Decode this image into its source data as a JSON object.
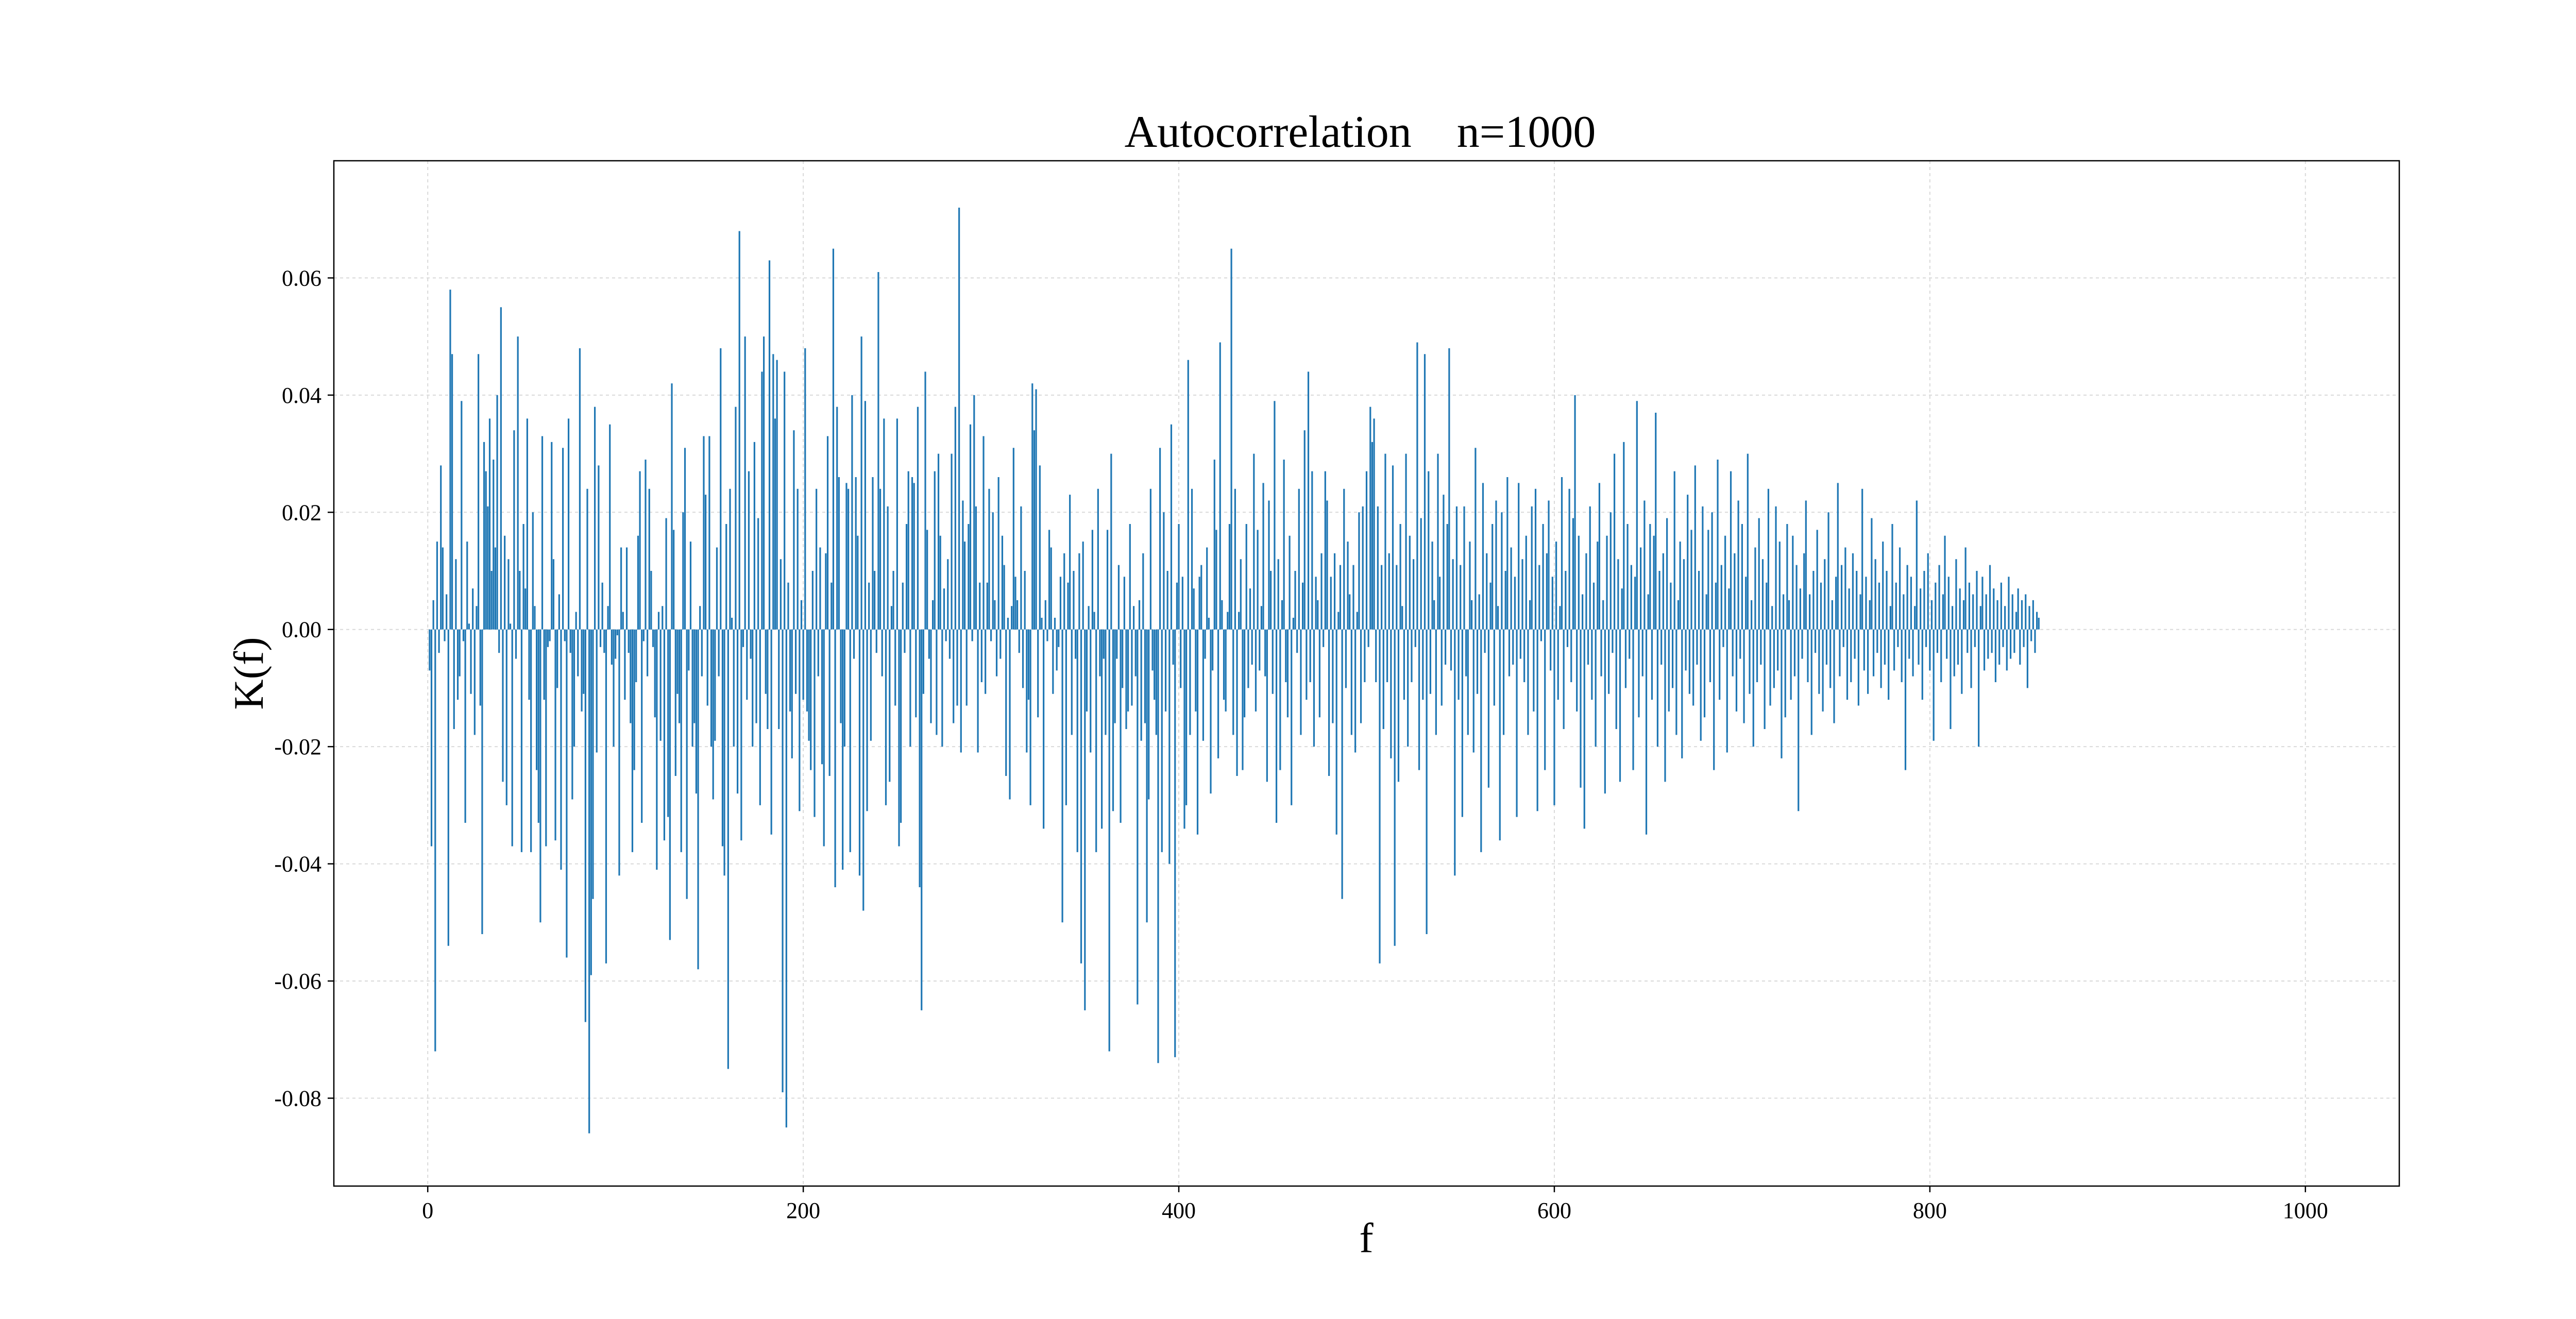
{
  "colors": {
    "bar": "#1f77b4",
    "background": "#ffffff",
    "grid": "#d9d9d9",
    "axis": "#000000"
  },
  "chart_data": {
    "type": "bar",
    "title": "Autocorrelation    n=1000",
    "xlabel": "f",
    "ylabel": "K(f)",
    "xlim": [
      -50,
      1050
    ],
    "ylim": [
      -0.095,
      0.08
    ],
    "grid": true,
    "x_ticks": [
      0,
      200,
      400,
      600,
      800,
      1000
    ],
    "x_tick_labels": [
      "0",
      "200",
      "400",
      "600",
      "800",
      "1000"
    ],
    "y_ticks": [
      -0.08,
      -0.06,
      -0.04,
      -0.02,
      0.0,
      0.02,
      0.04,
      0.06
    ],
    "y_tick_labels": [
      "-0.08",
      "-0.06",
      "-0.04",
      "-0.02",
      "0.00",
      "0.02",
      "0.04",
      "0.06"
    ],
    "series": [
      {
        "x_start": 1,
        "x_step": 1,
        "values": [
          -0.007,
          -0.037,
          0.005,
          -0.072,
          0.015,
          -0.004,
          0.028,
          0.014,
          -0.002,
          0.006,
          -0.054,
          0.058,
          0.047,
          -0.017,
          0.012,
          -0.012,
          -0.008,
          0.039,
          -0.002,
          -0.033,
          0.015,
          0.001,
          -0.011,
          0.007,
          -0.018,
          0.004,
          0.047,
          -0.013,
          -0.052,
          0.032,
          0.027,
          0.021,
          0.036,
          0.01,
          0.029,
          0.014,
          0.04,
          -0.004,
          0.055,
          -0.026,
          0.016,
          -0.03,
          0.012,
          0.001,
          -0.037,
          0.034,
          -0.005,
          0.05,
          0.01,
          -0.038,
          0.018,
          0.007,
          0.036,
          -0.012,
          -0.038,
          0.02,
          0.004,
          -0.024,
          -0.033,
          -0.05,
          0.033,
          -0.012,
          -0.037,
          -0.003,
          -0.002,
          0.032,
          0.012,
          -0.036,
          -0.01,
          0.006,
          -0.041,
          0.031,
          -0.002,
          -0.056,
          0.036,
          -0.004,
          -0.029,
          -0.02,
          0.003,
          -0.008,
          0.048,
          -0.014,
          -0.011,
          -0.067,
          0.024,
          -0.086,
          -0.059,
          -0.046,
          0.038,
          -0.021,
          0.028,
          -0.003,
          0.008,
          -0.004,
          -0.057,
          0.004,
          0.035,
          -0.006,
          -0.02,
          -0.005,
          -0.001,
          -0.042,
          0.014,
          0.003,
          -0.012,
          0.014,
          -0.004,
          -0.016,
          -0.038,
          -0.024,
          -0.009,
          0.016,
          0.027,
          -0.033,
          -0.002,
          0.029,
          -0.008,
          0.024,
          0.01,
          -0.003,
          -0.015,
          -0.041,
          0.003,
          -0.019,
          0.004,
          -0.036,
          0.019,
          -0.032,
          -0.053,
          0.042,
          0.017,
          -0.025,
          -0.011,
          -0.016,
          -0.038,
          0.02,
          0.031,
          -0.046,
          -0.007,
          0.015,
          -0.02,
          -0.016,
          -0.028,
          -0.058,
          0.004,
          -0.008,
          0.033,
          0.023,
          -0.013,
          0.033,
          -0.02,
          -0.029,
          -0.019,
          0.014,
          -0.008,
          0.048,
          -0.037,
          -0.042,
          0.018,
          -0.075,
          0.024,
          0.002,
          -0.02,
          0.038,
          -0.028,
          0.068,
          -0.036,
          -0.003,
          0.05,
          -0.012,
          0.027,
          -0.005,
          -0.02,
          0.032,
          -0.016,
          0.019,
          -0.03,
          0.044,
          0.05,
          -0.011,
          -0.017,
          0.063,
          -0.035,
          0.047,
          0.036,
          0.046,
          -0.017,
          0.012,
          -0.079,
          0.044,
          -0.085,
          0.008,
          -0.014,
          -0.022,
          0.034,
          -0.011,
          0.024,
          -0.031,
          0.005,
          -0.012,
          0.048,
          -0.014,
          -0.019,
          -0.024,
          0.01,
          -0.032,
          0.024,
          -0.008,
          0.014,
          -0.023,
          -0.037,
          0.013,
          0.033,
          -0.025,
          0.008,
          0.065,
          -0.044,
          0.038,
          0.026,
          -0.016,
          -0.041,
          -0.02,
          0.025,
          0.024,
          -0.038,
          0.04,
          -0.005,
          0.026,
          0.016,
          -0.042,
          0.05,
          -0.048,
          0.039,
          -0.031,
          0.008,
          -0.019,
          0.026,
          0.01,
          -0.004,
          0.061,
          0.024,
          -0.008,
          0.036,
          -0.03,
          0.021,
          -0.026,
          0.004,
          0.01,
          -0.013,
          0.036,
          -0.037,
          -0.033,
          0.008,
          -0.004,
          0.018,
          0.027,
          -0.02,
          0.026,
          0.025,
          -0.015,
          0.038,
          -0.044,
          -0.065,
          -0.011,
          0.044,
          0.017,
          -0.005,
          -0.016,
          0.005,
          0.027,
          -0.018,
          0.03,
          0.016,
          -0.02,
          0.007,
          -0.002,
          0.012,
          -0.005,
          0.03,
          -0.016,
          0.038,
          -0.013,
          0.072,
          -0.021,
          0.022,
          0.015,
          -0.013,
          0.018,
          0.035,
          -0.002,
          0.04,
          0.021,
          -0.021,
          0.008,
          -0.009,
          0.033,
          -0.011,
          0.008,
          0.024,
          -0.002,
          0.02,
          0.005,
          -0.008,
          0.026,
          -0.005,
          0.016,
          0.011,
          -0.025,
          0.002,
          -0.029,
          0.004,
          0.031,
          0.009,
          0.005,
          -0.004,
          0.021,
          -0.01,
          0.01,
          -0.021,
          -0.012,
          -0.03,
          0.042,
          0.034,
          0.041,
          -0.015,
          0.028,
          0.002,
          -0.034,
          0.005,
          -0.002,
          0.017,
          0.014,
          -0.011,
          0.002,
          -0.007,
          -0.003,
          0.009,
          -0.05,
          0.013,
          -0.03,
          0.008,
          0.023,
          -0.018,
          0.01,
          -0.005,
          -0.038,
          0.013,
          -0.057,
          0.015,
          -0.065,
          -0.014,
          0.004,
          -0.021,
          0.017,
          0.003,
          -0.038,
          0.024,
          -0.008,
          -0.034,
          -0.005,
          -0.018,
          0.017,
          -0.072,
          0.03,
          -0.031,
          -0.016,
          -0.005,
          0.011,
          -0.033,
          -0.01,
          0.009,
          -0.017,
          -0.014,
          0.018,
          -0.013,
          0.004,
          -0.008,
          -0.064,
          0.005,
          -0.019,
          0.013,
          -0.016,
          -0.05,
          -0.029,
          0.024,
          -0.007,
          -0.012,
          -0.018,
          -0.074,
          0.031,
          -0.038,
          0.02,
          -0.014,
          0.01,
          -0.04,
          0.035,
          -0.006,
          -0.073,
          0.008,
          0.018,
          -0.01,
          0.009,
          -0.034,
          -0.03,
          0.046,
          -0.018,
          0.024,
          0.007,
          -0.014,
          -0.035,
          0.009,
          0.011,
          -0.019,
          -0.005,
          0.014,
          0.002,
          -0.028,
          -0.007,
          0.029,
          0.017,
          -0.022,
          0.049,
          0.005,
          -0.012,
          -0.014,
          0.003,
          0.018,
          0.065,
          -0.018,
          0.024,
          -0.025,
          0.003,
          0.012,
          -0.024,
          -0.015,
          0.018,
          -0.01,
          0.007,
          -0.006,
          0.03,
          -0.014,
          0.017,
          -0.007,
          0.004,
          0.025,
          -0.008,
          -0.026,
          0.022,
          0.01,
          -0.011,
          0.039,
          -0.033,
          0.012,
          -0.024,
          0.005,
          0.029,
          -0.009,
          -0.015,
          0.016,
          -0.03,
          0.002,
          0.01,
          -0.004,
          0.024,
          -0.018,
          0.008,
          0.034,
          -0.012,
          0.044,
          -0.009,
          0.027,
          -0.02,
          0.009,
          0.005,
          -0.015,
          0.013,
          -0.003,
          0.027,
          0.022,
          -0.025,
          0.009,
          -0.016,
          0.013,
          -0.035,
          0.003,
          0.011,
          -0.046,
          0.024,
          -0.01,
          0.015,
          0.006,
          -0.018,
          0.011,
          -0.021,
          0.003,
          0.02,
          -0.016,
          0.021,
          -0.009,
          0.027,
          -0.003,
          0.038,
          0.032,
          0.036,
          -0.009,
          0.021,
          -0.057,
          0.011,
          -0.017,
          0.03,
          -0.009,
          0.013,
          -0.022,
          0.028,
          -0.054,
          0.011,
          -0.026,
          0.018,
          0.004,
          -0.012,
          0.03,
          -0.02,
          0.016,
          -0.009,
          0.012,
          -0.003,
          0.049,
          -0.024,
          0.019,
          -0.012,
          0.047,
          -0.052,
          0.027,
          -0.011,
          0.015,
          0.005,
          -0.018,
          0.03,
          0.009,
          -0.013,
          0.023,
          -0.006,
          0.018,
          0.048,
          -0.007,
          0.012,
          -0.042,
          0.021,
          -0.012,
          0.011,
          -0.032,
          0.021,
          -0.008,
          -0.018,
          0.015,
          0.005,
          -0.021,
          0.031,
          -0.011,
          0.006,
          -0.038,
          0.025,
          -0.004,
          0.013,
          -0.027,
          0.008,
          0.018,
          -0.013,
          0.022,
          0.004,
          -0.036,
          0.02,
          -0.018,
          0.01,
          0.026,
          -0.008,
          0.014,
          -0.006,
          0.009,
          -0.032,
          0.025,
          -0.005,
          0.012,
          -0.009,
          0.016,
          -0.018,
          0.005,
          0.021,
          -0.014,
          0.024,
          -0.031,
          0.011,
          -0.002,
          0.018,
          -0.024,
          0.013,
          0.022,
          -0.007,
          0.009,
          -0.03,
          0.015,
          -0.012,
          0.004,
          0.026,
          -0.017,
          0.01,
          -0.003,
          0.024,
          -0.009,
          0.019,
          0.04,
          -0.014,
          0.016,
          -0.027,
          0.006,
          -0.034,
          0.013,
          -0.006,
          0.021,
          -0.012,
          0.008,
          -0.02,
          0.015,
          0.025,
          -0.008,
          0.005,
          -0.028,
          0.016,
          -0.011,
          0.02,
          -0.004,
          0.03,
          -0.017,
          0.012,
          -0.026,
          0.007,
          0.032,
          -0.01,
          0.018,
          -0.005,
          0.011,
          -0.024,
          0.009,
          0.039,
          -0.015,
          0.014,
          -0.008,
          0.022,
          -0.035,
          0.006,
          0.018,
          -0.012,
          0.016,
          0.037,
          -0.02,
          0.01,
          -0.006,
          0.013,
          -0.026,
          0.019,
          -0.014,
          0.008,
          -0.01,
          0.027,
          -0.018,
          0.005,
          0.015,
          -0.022,
          0.012,
          -0.007,
          0.023,
          -0.011,
          0.017,
          -0.013,
          0.028,
          -0.006,
          0.01,
          -0.019,
          0.021,
          -0.015,
          0.006,
          0.017,
          -0.009,
          0.02,
          -0.024,
          0.008,
          0.029,
          -0.012,
          0.011,
          -0.003,
          0.016,
          -0.021,
          0.007,
          0.027,
          -0.008,
          0.013,
          -0.014,
          0.022,
          -0.005,
          0.018,
          -0.016,
          0.009,
          0.03,
          -0.011,
          0.005,
          -0.02,
          0.014,
          -0.009,
          0.019,
          -0.006,
          0.012,
          -0.017,
          0.008,
          0.024,
          -0.013,
          0.004,
          -0.01,
          0.021,
          -0.007,
          0.015,
          -0.022,
          0.006,
          -0.015,
          0.018,
          0.005,
          -0.012,
          0.016,
          -0.008,
          0.011,
          -0.031,
          0.007,
          -0.005,
          0.013,
          0.022,
          -0.009,
          0.006,
          -0.018,
          0.01,
          -0.004,
          0.017,
          -0.011,
          0.008,
          -0.014,
          0.012,
          -0.006,
          0.02,
          -0.01,
          0.005,
          -0.016,
          0.009,
          0.025,
          -0.008,
          0.011,
          -0.003,
          0.014,
          -0.012,
          0.007,
          -0.009,
          0.013,
          -0.005,
          0.01,
          -0.013,
          0.006,
          0.024,
          -0.007,
          0.009,
          -0.011,
          0.005,
          0.019,
          -0.008,
          0.012,
          -0.004,
          0.008,
          -0.01,
          0.015,
          -0.006,
          0.01,
          -0.012,
          0.004,
          0.018,
          -0.007,
          0.008,
          -0.003,
          0.014,
          -0.009,
          0.006,
          -0.024,
          0.011,
          -0.005,
          0.009,
          -0.008,
          0.004,
          0.022,
          -0.006,
          0.007,
          -0.012,
          0.01,
          -0.003,
          0.013,
          -0.007,
          0.005,
          -0.019,
          0.008,
          -0.004,
          0.011,
          -0.009,
          0.006,
          0.016,
          -0.005,
          0.009,
          -0.017,
          0.004,
          -0.008,
          0.012,
          -0.006,
          0.007,
          -0.011,
          0.005,
          0.014,
          -0.004,
          0.008,
          -0.01,
          0.006,
          -0.003,
          0.01,
          -0.02,
          0.004,
          0.009,
          -0.007,
          0.006,
          -0.005,
          0.011,
          -0.004,
          0.007,
          -0.009,
          0.005,
          -0.006,
          0.008,
          -0.003,
          0.004,
          -0.007,
          0.009,
          -0.005,
          0.006,
          -0.004,
          0.003,
          0.007,
          -0.006,
          0.005,
          -0.003,
          0.006,
          -0.01,
          0.004,
          -0.002,
          0.005,
          -0.004,
          0.003,
          0.002
        ]
      }
    ]
  }
}
